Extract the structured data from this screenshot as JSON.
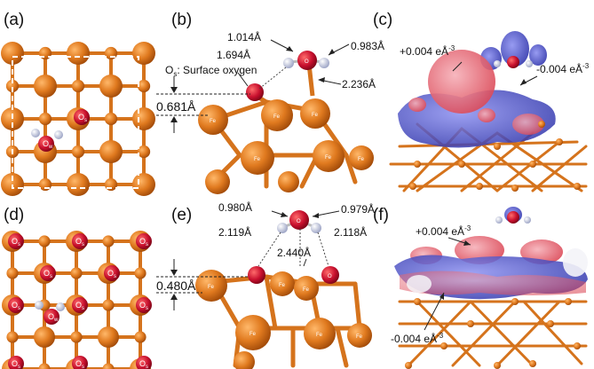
{
  "panels": {
    "a": "(a)",
    "b": "(b)",
    "c": "(c)",
    "d": "(d)",
    "e": "(e)",
    "f": "(f)"
  },
  "top_view_atoms": {
    "os": "O",
    "os_sub": "s",
    "ow": "O",
    "ow_sub": "w"
  },
  "panel_b": {
    "os_label": "O",
    "os_label_sub": "s",
    "os_label_rest": ": Surface oxygen",
    "d1": "1.014Å",
    "d2": "0.983Å",
    "d3": "1.694Å",
    "d4": "2.236Å",
    "height": "0.681Å"
  },
  "panel_c": {
    "pos": "+0.004 eÅ",
    "pos_exp": "-3",
    "neg": "-0.004 eÅ",
    "neg_exp": "-3"
  },
  "panel_e": {
    "d1": "0.980Å",
    "d2": "0.979Å",
    "d3": "2.119Å",
    "d4": "2.118Å",
    "d5": "2.440Å",
    "height": "0.480Å"
  },
  "panel_f": {
    "pos": "+0.004 eÅ",
    "pos_exp": "-3",
    "neg": "-0.004 eÅ",
    "neg_exp": "-3"
  },
  "atom_labels": {
    "fe": "Fe",
    "o": "O",
    "h": "H"
  },
  "colors": {
    "fe": "#e07a1f",
    "fe_dark": "#b8560c",
    "oxygen": "#c8102e",
    "hydrogen": "#cfd3e6",
    "pos_density": "#e46a78",
    "neg_density": "#4046c8"
  }
}
